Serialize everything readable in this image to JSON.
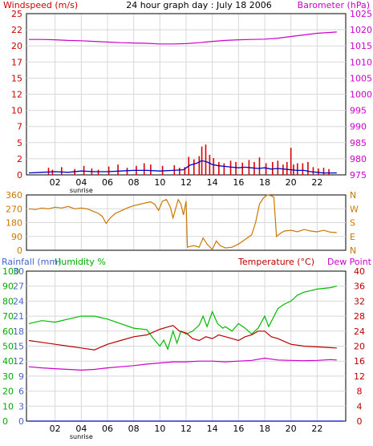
{
  "title": "24 hour graph day : July 18 2006",
  "colors": {
    "wind": "#cc0000",
    "gust": "#dd0000",
    "avg_wind": "#0000cc",
    "baro": "#cc00cc",
    "dir": "#cc7700",
    "humidity": "#00bb00",
    "temp": "#bb0000",
    "dew": "#cc00cc",
    "rain": "#0000cc",
    "rain_axis": "#4466cc",
    "hum_axis": "#00aa00",
    "grid": "#d8d8d8",
    "frame": "#000000"
  },
  "x_ticks": [
    "02",
    "04",
    "06",
    "08",
    "10",
    "12",
    "14",
    "16",
    "18",
    "20",
    "22"
  ],
  "sunrise_label": "sunrise",
  "chart_data": [
    {
      "type": "line",
      "id": "wind-baro",
      "title": "24 hour graph day : July 18 2006",
      "left_label": "Windspeed (m/s)",
      "right_label": "Barometer (hPa)",
      "xlim": [
        0,
        24
      ],
      "left_ylim": [
        0,
        25
      ],
      "right_ylim": [
        975,
        1025
      ],
      "left_ticks": [
        0,
        2.5,
        5,
        7.5,
        10,
        12.5,
        15,
        17.5,
        20,
        22.5,
        25
      ],
      "left_tick_labels": [
        "0",
        "2",
        "5",
        "7",
        "10",
        "12",
        "15",
        "17",
        "20",
        "22",
        "25"
      ],
      "right_ticks": [
        975,
        980,
        985,
        990,
        995,
        1000,
        1005,
        1010,
        1015,
        1020,
        1025
      ],
      "series": [
        {
          "role": "baro",
          "x": [
            0,
            1,
            2,
            3,
            4,
            5,
            6,
            7,
            8,
            9,
            10,
            11,
            12,
            13,
            14,
            15,
            16,
            17,
            18,
            19,
            20,
            21,
            22,
            23.5
          ],
          "y": [
            1017,
            1017,
            1016.9,
            1016.7,
            1016.6,
            1016.4,
            1016.2,
            1016,
            1015.9,
            1015.8,
            1015.6,
            1015.6,
            1015.7,
            1016,
            1016.4,
            1016.7,
            1016.9,
            1017,
            1017.1,
            1017.4,
            1017.9,
            1018.4,
            1018.9,
            1019.3
          ]
        },
        {
          "role": "gust",
          "x": [
            1.5,
            1.8,
            2.5,
            3.5,
            4.2,
            4.8,
            5.3,
            6.1,
            6.8,
            7.5,
            8.2,
            8.8,
            9.3,
            10.2,
            11.1,
            11.5,
            11.9,
            12.2,
            12.6,
            13.0,
            13.2,
            13.5,
            13.8,
            14.1,
            14.5,
            14.9,
            15.4,
            15.8,
            16.3,
            16.8,
            17.2,
            17.6,
            18.1,
            18.6,
            19.0,
            19.4,
            19.7,
            20.0,
            20.2,
            20.5,
            20.9,
            21.3,
            21.7,
            22.1,
            22.5,
            22.9
          ],
          "y": [
            1.1,
            0.8,
            1.2,
            0.9,
            1.4,
            1.0,
            0.8,
            1.3,
            1.6,
            1.1,
            1.4,
            1.8,
            1.6,
            1.4,
            1.5,
            1.1,
            1.2,
            2.8,
            2.4,
            2.9,
            4.4,
            4.7,
            3.1,
            2.6,
            2.0,
            1.8,
            2.2,
            2.0,
            1.9,
            2.3,
            2.0,
            2.7,
            1.8,
            2.0,
            2.2,
            1.6,
            2.0,
            4.2,
            1.6,
            1.8,
            1.8,
            2.0,
            1.2,
            1.0,
            1.1,
            0.9
          ]
        },
        {
          "role": "avg_wind",
          "x": [
            0,
            1,
            2,
            3,
            4,
            5,
            6,
            7,
            8,
            9,
            10,
            11,
            11.8,
            12.3,
            12.8,
            13.2,
            13.6,
            14,
            14.5,
            15,
            15.5,
            16,
            16.5,
            17,
            17.5,
            18,
            18.5,
            19,
            19.5,
            20,
            20.5,
            21,
            21.5,
            22,
            22.5,
            23.5
          ],
          "y": [
            0.3,
            0.4,
            0.5,
            0.4,
            0.6,
            0.5,
            0.5,
            0.6,
            0.7,
            0.7,
            0.6,
            0.7,
            0.8,
            1.5,
            1.8,
            2.2,
            2.0,
            1.6,
            1.4,
            1.3,
            1.2,
            1.1,
            1.2,
            1.1,
            1.0,
            1.1,
            0.9,
            1.0,
            0.9,
            0.8,
            0.7,
            0.7,
            0.5,
            0.4,
            0.3,
            0.3
          ]
        }
      ]
    },
    {
      "type": "line",
      "id": "wind-direction",
      "xlim": [
        0,
        24
      ],
      "ylim": [
        0,
        360
      ],
      "left_ticks": [
        0,
        90,
        180,
        270,
        360
      ],
      "right_labels": [
        "N",
        "W",
        "S",
        "E",
        "N"
      ],
      "series": [
        {
          "role": "dir",
          "x": [
            0,
            0.5,
            1,
            1.5,
            2,
            2.5,
            3,
            3.5,
            4,
            4.5,
            5,
            5.3,
            5.6,
            5.9,
            6.2,
            6.6,
            7,
            7.5,
            8,
            8.5,
            9,
            9.3,
            9.6,
            9.9,
            10.2,
            10.5,
            10.8,
            11,
            11.2,
            11.4,
            11.6,
            11.8,
            12,
            12.1,
            12.3,
            12.6,
            13,
            13.3,
            13.6,
            14,
            14.3,
            14.6,
            15,
            15.5,
            16,
            16.5,
            17,
            17.3,
            17.6,
            17.9,
            18.2,
            18.5,
            18.7,
            18.9,
            19.2,
            19.5,
            20,
            20.5,
            21,
            21.5,
            22,
            22.5,
            23,
            23.5
          ],
          "y": [
            270,
            265,
            275,
            270,
            280,
            275,
            285,
            270,
            275,
            268,
            250,
            240,
            220,
            175,
            210,
            240,
            255,
            275,
            290,
            300,
            310,
            315,
            300,
            260,
            320,
            330,
            280,
            210,
            270,
            330,
            300,
            230,
            320,
            20,
            25,
            30,
            20,
            80,
            40,
            5,
            60,
            30,
            15,
            20,
            40,
            70,
            100,
            180,
            300,
            340,
            360,
            355,
            345,
            90,
            110,
            125,
            130,
            120,
            135,
            125,
            120,
            130,
            118,
            115
          ]
        }
      ]
    },
    {
      "type": "line",
      "id": "temp-humidity-rain",
      "left_label_rain": "Rainfall (mm)",
      "left_label_humidity": "Humidity %",
      "right_label_temp": "Temperature (°C)",
      "right_label_dew": "Dew Point",
      "xlim": [
        0,
        24
      ],
      "humidity_ticks": [
        0,
        10,
        20,
        30,
        40,
        50,
        60,
        70,
        80,
        90,
        100
      ],
      "rain_ticks": [
        0,
        3,
        6,
        9,
        12,
        15,
        18,
        21,
        24,
        27,
        30
      ],
      "temp_ticks": [
        0,
        4,
        8,
        12,
        16,
        20,
        24,
        28,
        32,
        36,
        40
      ],
      "temp_ylim": [
        0,
        40
      ],
      "series": [
        {
          "role": "humidity",
          "x": [
            0,
            1,
            2,
            3,
            4,
            5,
            5.5,
            6,
            7,
            8,
            9,
            9.5,
            10,
            10.3,
            10.6,
            11,
            11.3,
            11.6,
            12,
            12.5,
            13,
            13.3,
            13.6,
            14,
            14.4,
            14.8,
            15,
            15.5,
            16,
            16.5,
            17,
            17.5,
            18,
            18.3,
            18.6,
            19,
            19.5,
            20,
            20.5,
            21,
            21.5,
            22,
            23,
            23.5
          ],
          "y": [
            65,
            67,
            66,
            68,
            70,
            70,
            69,
            68,
            65,
            62,
            61,
            55,
            50,
            54,
            48,
            60,
            52,
            60,
            58,
            60,
            64,
            70,
            63,
            73,
            65,
            62,
            63,
            60,
            65,
            62,
            58,
            62,
            70,
            63,
            68,
            75,
            78,
            80,
            84,
            86,
            87,
            88,
            89,
            90
          ]
        },
        {
          "role": "temp",
          "x": [
            0,
            1,
            2,
            3,
            4,
            5,
            6,
            7,
            8,
            9,
            10,
            10.5,
            11,
            11.5,
            12,
            12.5,
            13,
            13.5,
            14,
            14.5,
            15,
            15.5,
            16,
            16.5,
            17,
            17.5,
            18,
            18.5,
            19,
            20,
            21,
            22,
            23,
            23.5
          ],
          "y": [
            21.5,
            21,
            20.5,
            20,
            19.5,
            19,
            20.5,
            21.5,
            22.5,
            23,
            24.5,
            25,
            25.5,
            24,
            23.5,
            22,
            21.5,
            22.5,
            22,
            23,
            22.5,
            22,
            21.5,
            22.5,
            23,
            24,
            24,
            22.5,
            22,
            20.5,
            20,
            19.8,
            19.6,
            19.5
          ]
        },
        {
          "role": "dew",
          "x": [
            0,
            1,
            2,
            3,
            4,
            5,
            6,
            7,
            8,
            9,
            10,
            11,
            12,
            13,
            14,
            15,
            16,
            17,
            18,
            19,
            20,
            21,
            22,
            23,
            23.5
          ],
          "y": [
            14.5,
            14.2,
            14,
            13.8,
            13.6,
            13.8,
            14.2,
            14.5,
            14.8,
            15.2,
            15.5,
            15.8,
            15.8,
            16,
            16,
            15.8,
            16,
            16.2,
            16.8,
            16.3,
            16.2,
            16.1,
            16.2,
            16.4,
            16.3
          ]
        },
        {
          "role": "rain",
          "x": [
            0,
            24
          ],
          "y": [
            0,
            0
          ]
        }
      ]
    }
  ]
}
